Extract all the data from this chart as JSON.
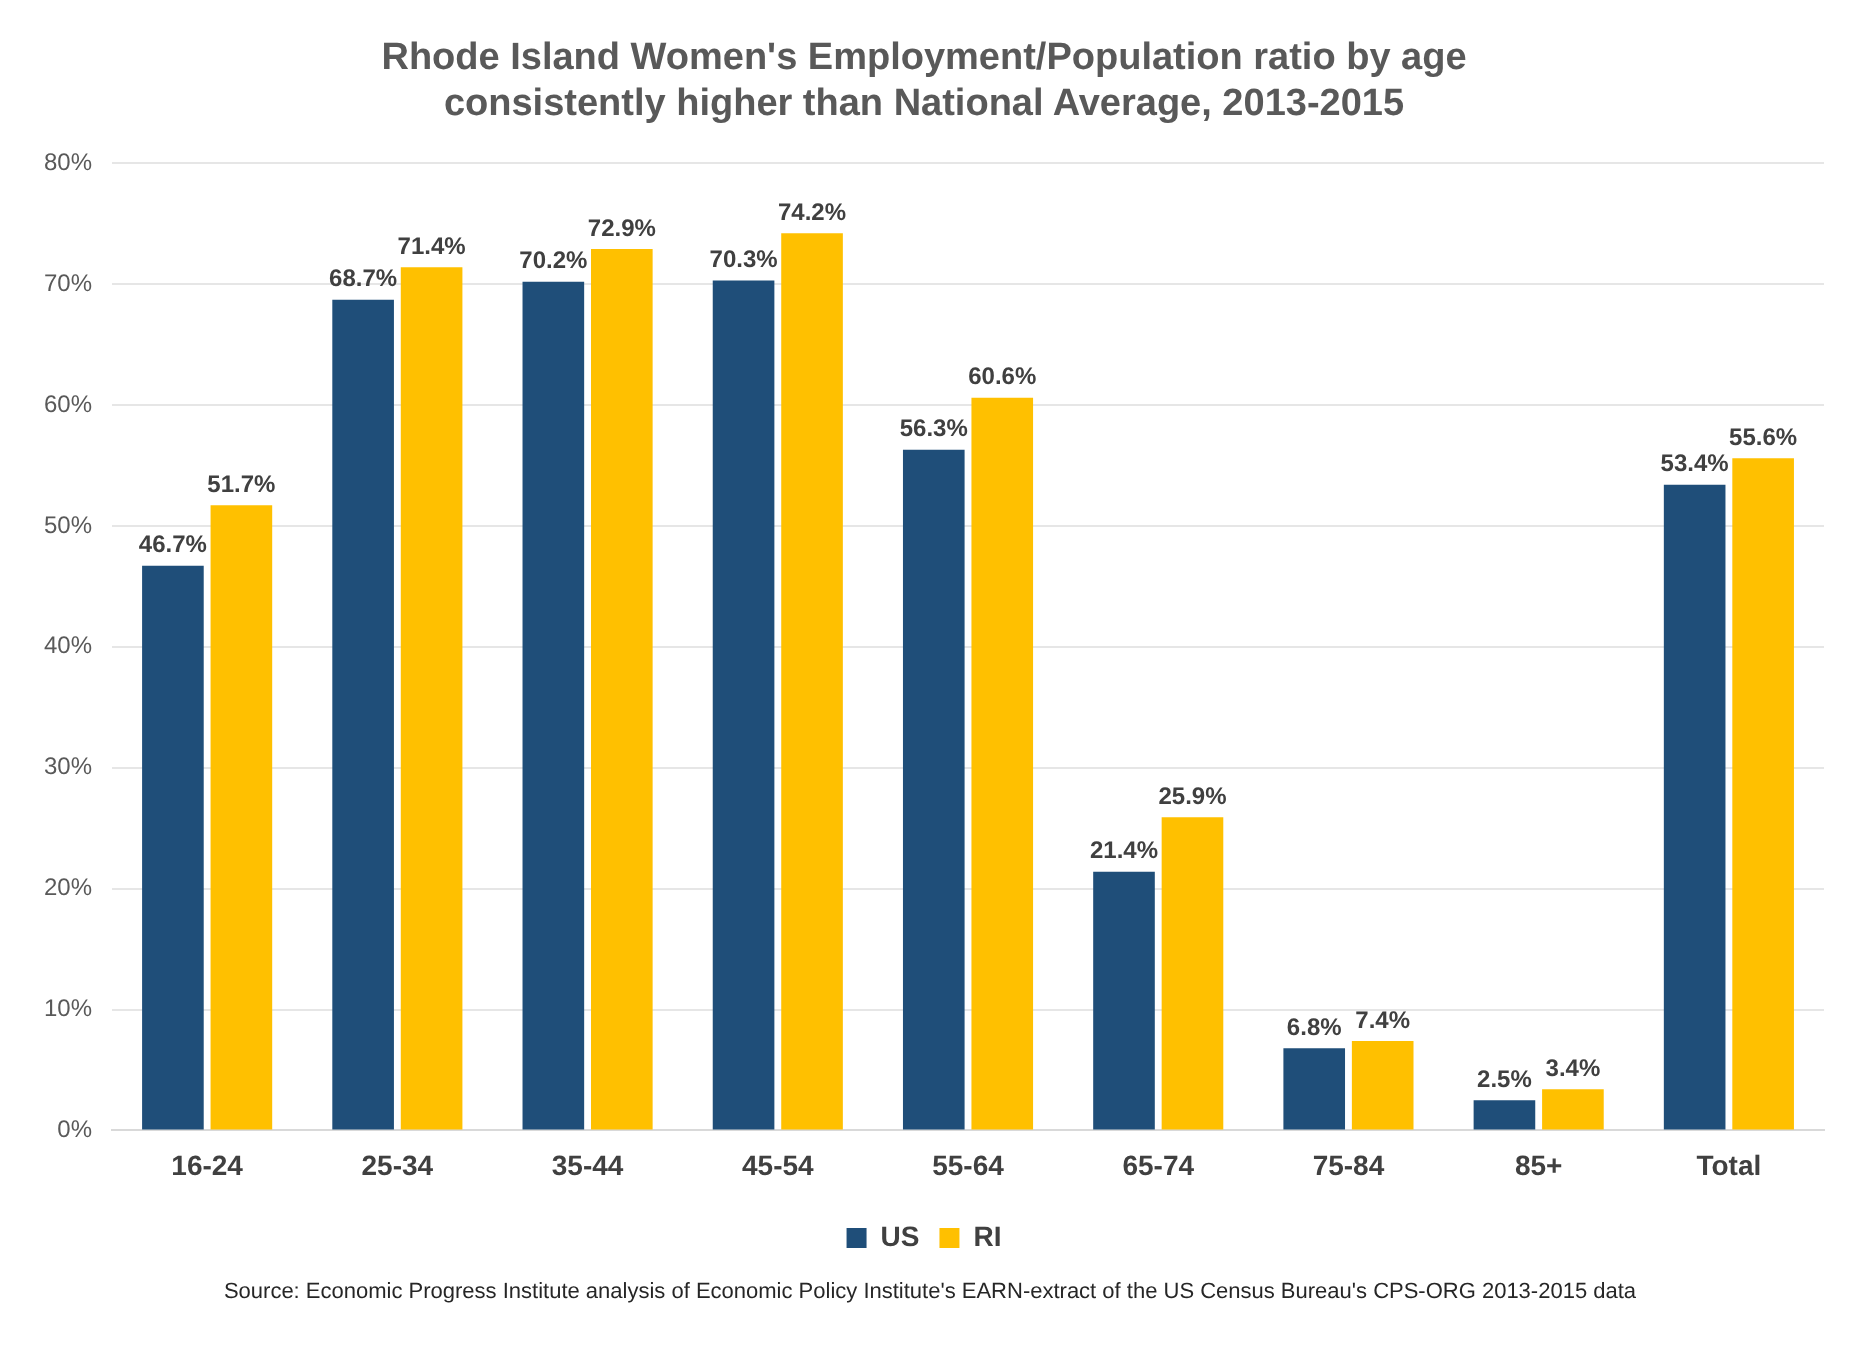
{
  "chart_data": {
    "type": "bar",
    "title": "Rhode Island Women's Employment/Population ratio by age consistently higher than National Average, 2013-2015",
    "categories": [
      "16-24",
      "25-34",
      "35-44",
      "45-54",
      "55-64",
      "65-74",
      "75-84",
      "85+",
      "Total"
    ],
    "series": [
      {
        "name": "US",
        "color": "#1f4e79",
        "values": [
          46.7,
          68.7,
          70.2,
          70.3,
          56.3,
          21.4,
          6.8,
          2.5,
          53.4
        ],
        "value_labels": [
          "46.7%",
          "68.7%",
          "70.2%",
          "70.3%",
          "56.3%",
          "21.4%",
          "6.8%",
          "2.5%",
          "53.4%"
        ]
      },
      {
        "name": "RI",
        "color": "#ffc000",
        "values": [
          51.7,
          71.4,
          72.9,
          74.2,
          60.6,
          25.9,
          7.4,
          3.4,
          55.6
        ],
        "value_labels": [
          "51.7%",
          "71.4%",
          "72.9%",
          "74.2%",
          "60.6%",
          "25.9%",
          "7.4%",
          "3.4%",
          "55.6%"
        ]
      }
    ],
    "ylim": [
      0,
      80
    ],
    "yticks": [
      {
        "value": 0,
        "label": "0%"
      },
      {
        "value": 10,
        "label": "10%"
      },
      {
        "value": 20,
        "label": "20%"
      },
      {
        "value": 30,
        "label": "30%"
      },
      {
        "value": 40,
        "label": "40%"
      },
      {
        "value": 50,
        "label": "50%"
      },
      {
        "value": 60,
        "label": "60%"
      },
      {
        "value": 70,
        "label": "70%"
      },
      {
        "value": 80,
        "label": "80%"
      }
    ],
    "grid": "y",
    "legend": "bottom",
    "annotations": [
      "Source: Economic Progress Institute analysis of Economic Policy Institute's EARN-extract of the US Census Bureau's CPS-ORG 2013-2015 data"
    ]
  }
}
